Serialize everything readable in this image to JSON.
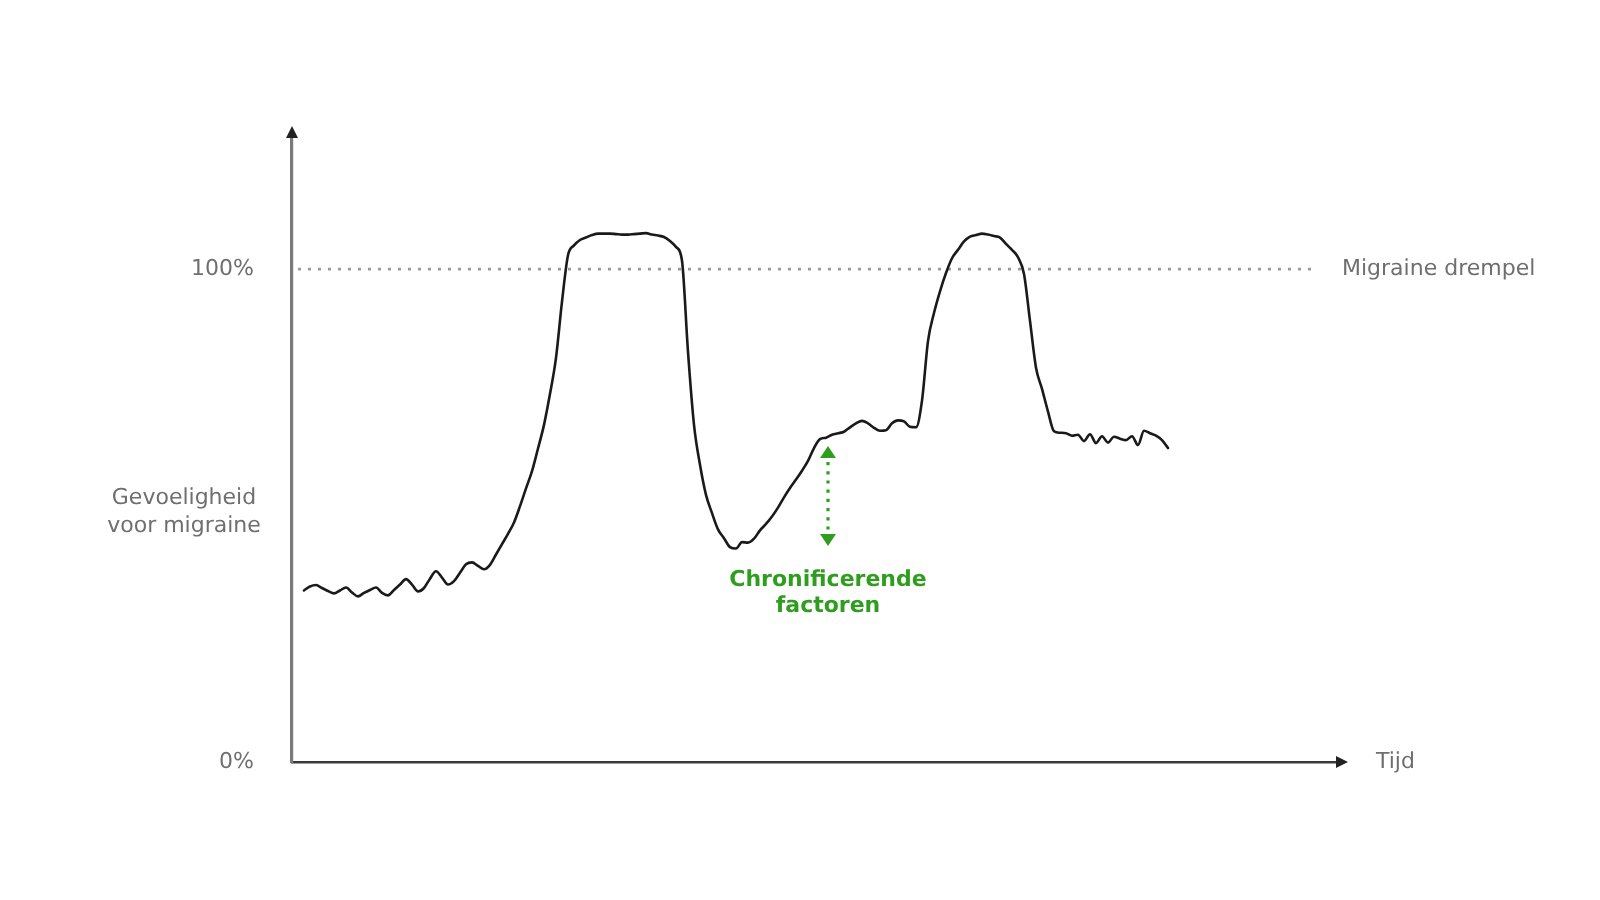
{
  "chart_data": {
    "type": "line",
    "xlabel": "Tijd",
    "ylabel": "Gevoeligheid voor migraine",
    "annotations": [
      "Chronificerende factoren"
    ],
    "categories": [
      null,
      null,
      null,
      null,
      null,
      null,
      null,
      null,
      null,
      null,
      null,
      null,
      null,
      null,
      null,
      null,
      null,
      null,
      null,
      null,
      null,
      null,
      null,
      null,
      null,
      null,
      null,
      null,
      null,
      null,
      null,
      null,
      null,
      null,
      null,
      null,
      null,
      null,
      null,
      null,
      null,
      null,
      null,
      null,
      null,
      null,
      null,
      null,
      null,
      null,
      null,
      null,
      null,
      null,
      null,
      null,
      null,
      null,
      null,
      null,
      null,
      null,
      null,
      null,
      null,
      null,
      null,
      null,
      null,
      null,
      null,
      null,
      null,
      null,
      null,
      null,
      null,
      null,
      null,
      null,
      null,
      null,
      null,
      null,
      null,
      null,
      null,
      null,
      null,
      null,
      null,
      null,
      null,
      null,
      null,
      null,
      null,
      null,
      null,
      null,
      null,
      null,
      null,
      null,
      null,
      null,
      null,
      null,
      null,
      null,
      null,
      null,
      null,
      null,
      null,
      null,
      null,
      null,
      null,
      null,
      null,
      null,
      null,
      null,
      null,
      null,
      null,
      null,
      null,
      null,
      null,
      null,
      null,
      null,
      null,
      null,
      null,
      null,
      null,
      null,
      null,
      null,
      null,
      null,
      null,
      null,
      null,
      null,
      null,
      null,
      null,
      null,
      null,
      null,
      null,
      null,
      null,
      null,
      null,
      null,
      null,
      null,
      null,
      null,
      null,
      null,
      null,
      null,
      null,
      null,
      null,
      null,
      null,
      null,
      null
    ],
    "values": [
      null,
      null,
      34.8,
      35.6,
      35.9,
      35.3,
      34.7,
      34.2,
      34.8,
      35.4,
      34.4,
      33.6,
      34.3,
      34.9,
      35.4,
      34.3,
      33.8,
      34.9,
      36.0,
      37.1,
      36.0,
      34.6,
      35.3,
      37.2,
      38.7,
      37.4,
      36.0,
      36.7,
      38.4,
      40.1,
      40.5,
      39.8,
      39.1,
      40.0,
      42.1,
      44.2,
      46.3,
      48.6,
      51.9,
      55.5,
      59.0,
      63.6,
      68.4,
      74.7,
      82.0,
      93.4,
      102.8,
      104.8,
      105.9,
      106.4,
      106.9,
      107.2,
      107.2,
      107.2,
      107.1,
      107.0,
      107.0,
      107.1,
      107.2,
      107.3,
      107.0,
      106.8,
      106.5,
      105.7,
      104.5,
      101.7,
      83.2,
      68.4,
      60.3,
      54.2,
      50.5,
      47.2,
      45.4,
      43.6,
      43.3,
      44.6,
      44.5,
      45.3,
      47.0,
      48.3,
      49.8,
      51.6,
      53.7,
      55.6,
      57.3,
      59.1,
      61.1,
      63.7,
      65.5,
      65.8,
      66.4,
      66.7,
      67.0,
      67.9,
      68.7,
      69.2,
      68.7,
      67.8,
      67.2,
      67.3,
      68.7,
      69.3,
      69.1,
      68.0,
      67.9,
      73.3,
      85.4,
      91.1,
      95.5,
      99.2,
      102.2,
      103.9,
      105.6,
      106.6,
      106.9,
      107.2,
      107.0,
      106.7,
      106.4,
      105.1,
      103.9,
      102.4,
      99.0,
      89.5,
      80.0,
      75.7,
      71.1,
      67.1,
      66.8,
      66.7,
      66.2,
      66.4,
      65.1,
      66.5,
      64.7,
      66.1,
      64.8,
      66.0,
      65.6,
      65.3,
      66.1,
      64.3,
      67.2,
      66.7,
      66.2,
      65.3,
      63.7,
      null,
      null,
      null,
      null,
      null,
      null,
      null,
      null,
      null,
      null,
      null,
      null,
      null,
      null,
      null,
      null,
      null,
      null,
      null,
      null,
      null,
      null,
      null,
      null,
      null,
      null,
      null,
      null
    ],
    "color": "#1a1a1a",
    "ylim": [
      0,
      127
    ],
    "yticks": [
      {
        "value": 0,
        "label": "0%"
      },
      {
        "value": 100,
        "label": "100%"
      }
    ],
    "ref_lines": [
      {
        "axis": "y",
        "value": 100,
        "label": "Migraine drempel",
        "color": "#9a9a9a",
        "line_style": "dotted"
      }
    ],
    "grid": false,
    "legend": false,
    "tick_labels": "y",
    "marker": "none",
    "line_style": "solid"
  }
}
